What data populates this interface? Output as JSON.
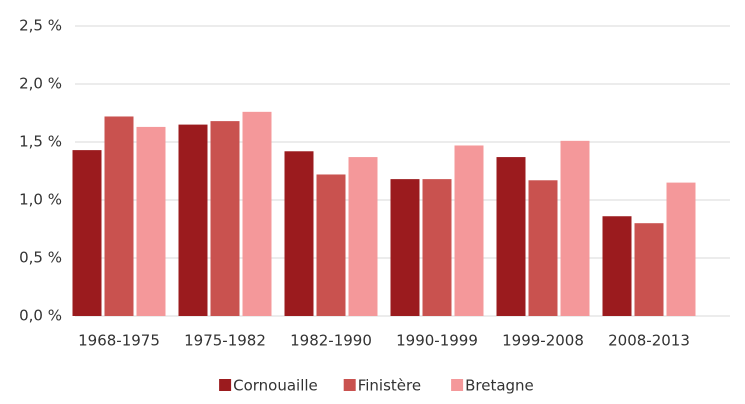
{
  "chart_data": {
    "type": "bar",
    "categories": [
      "1968-1975",
      "1975-1982",
      "1982-1990",
      "1990-1999",
      "1999-2008",
      "2008-2013"
    ],
    "series": [
      {
        "name": "Cornouaille",
        "color": "#9b1b1e",
        "values": [
          1.43,
          1.65,
          1.42,
          1.18,
          1.37,
          0.86
        ]
      },
      {
        "name": "Finistère",
        "color": "#c9524f",
        "values": [
          1.72,
          1.68,
          1.22,
          1.18,
          1.17,
          0.8
        ]
      },
      {
        "name": "Bretagne",
        "color": "#f4989a",
        "values": [
          1.63,
          1.76,
          1.37,
          1.47,
          1.51,
          1.15
        ]
      }
    ],
    "ylim": [
      0,
      2.5
    ],
    "yticks": [
      {
        "value": 0,
        "label": "0,0 %"
      },
      {
        "value": 0.5,
        "label": "0,5 %"
      },
      {
        "value": 1,
        "label": "1,0 %"
      },
      {
        "value": 1.5,
        "label": "1,5 %"
      },
      {
        "value": 2,
        "label": "2,0 %"
      },
      {
        "value": 2.5,
        "label": "2,5 %"
      }
    ],
    "grid": true,
    "legend": "bottom"
  }
}
